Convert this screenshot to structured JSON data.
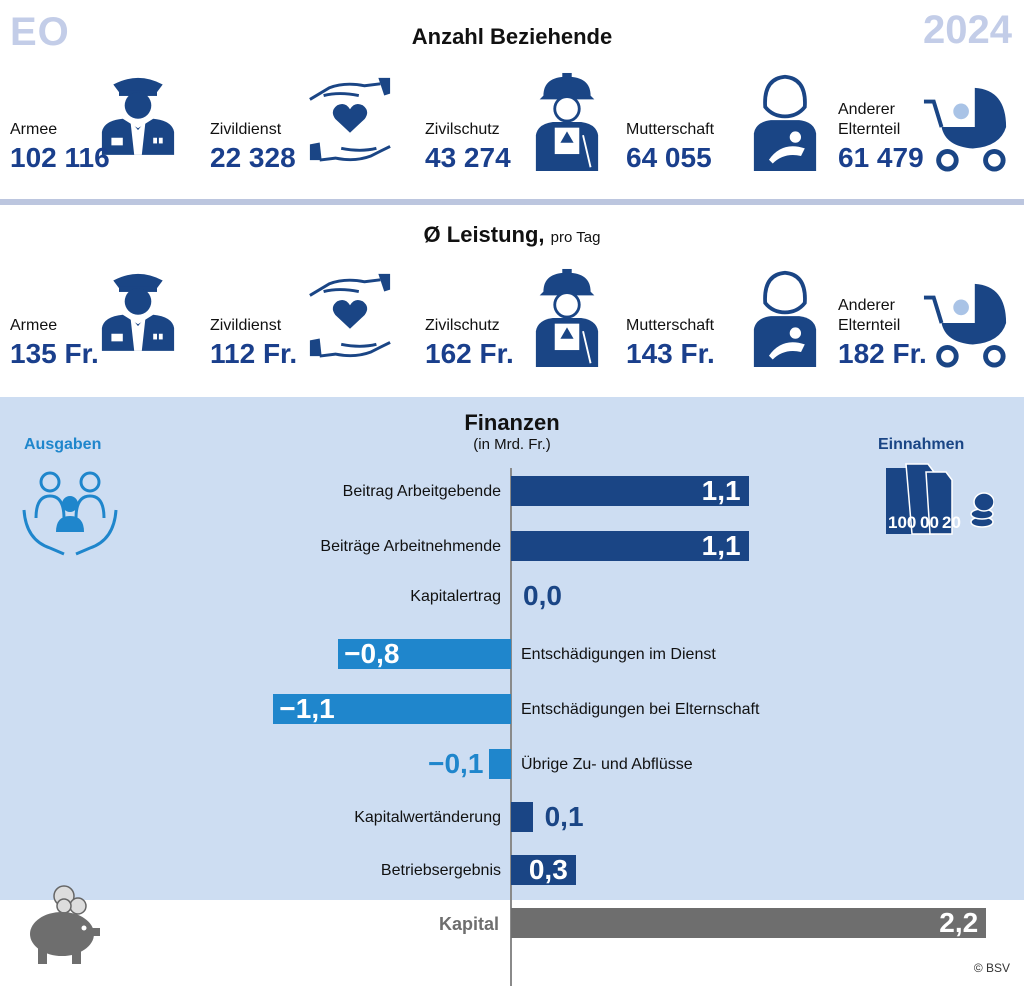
{
  "header": {
    "eo": "EO",
    "year": "2024"
  },
  "beziehende": {
    "title": "Anzahl Beziehende",
    "items": [
      {
        "label": "Armee",
        "value": "102 116",
        "icon": "soldier-icon"
      },
      {
        "label": "Zivildienst",
        "value": "22 328",
        "icon": "hands-heart-icon"
      },
      {
        "label": "Zivilschutz",
        "value": "43 274",
        "icon": "helmet-worker-icon"
      },
      {
        "label": "Mutterschaft",
        "value": "64 055",
        "icon": "mother-baby-icon"
      },
      {
        "label": "Anderer",
        "label2": "Elternteil",
        "value": "61 479",
        "icon": "stroller-icon"
      }
    ]
  },
  "leistung": {
    "title": "Ø Leistung,",
    "subtitle": "pro Tag",
    "items": [
      {
        "label": "Armee",
        "value": "135 Fr.",
        "icon": "soldier-icon"
      },
      {
        "label": "Zivildienst",
        "value": "112 Fr.",
        "icon": "hands-heart-icon"
      },
      {
        "label": "Zivilschutz",
        "value": "162 Fr.",
        "icon": "helmet-worker-icon"
      },
      {
        "label": "Mutterschaft",
        "value": "143 Fr.",
        "icon": "mother-baby-icon"
      },
      {
        "label": "Anderer",
        "label2": "Elternteil",
        "value": "182 Fr.",
        "icon": "stroller-icon"
      }
    ]
  },
  "finanzen": {
    "title": "Finanzen",
    "unit": "(in Mrd. Fr.)",
    "ausgaben_label": "Ausgaben",
    "einnahmen_label": "Einnahmen",
    "colors": {
      "income": "#1a4585",
      "expense": "#1f86cc",
      "capital": "#6e6e6e",
      "bg": "#cdddf2"
    }
  },
  "chart_data": {
    "type": "bar",
    "orientation": "horizontal",
    "title": "Finanzen",
    "unit": "(in Mrd. Fr.)",
    "categories": [
      "Beitrag Arbeitgebende",
      "Beiträge Arbeitnehmende",
      "Kapitalertrag",
      "Entschädigungen im Dienst",
      "Entschädigungen bei Elternschaft",
      "Übrige Zu- und Abflüsse",
      "Kapitalwertänderung",
      "Betriebsergebnis",
      "Kapital"
    ],
    "values": [
      1.1,
      1.1,
      0.0,
      -0.8,
      -1.1,
      -0.1,
      0.1,
      0.3,
      2.2
    ],
    "value_labels": [
      "1,1",
      "1,1",
      "0,0",
      "−0,8",
      "−1,1",
      "−0,1",
      "0,1",
      "0,3",
      "2,2"
    ],
    "kind": [
      "income",
      "income",
      "income",
      "expense",
      "expense",
      "expense",
      "income",
      "income",
      "capital"
    ],
    "xlim": [
      -1.1,
      2.2
    ]
  },
  "copyright": "© BSV"
}
